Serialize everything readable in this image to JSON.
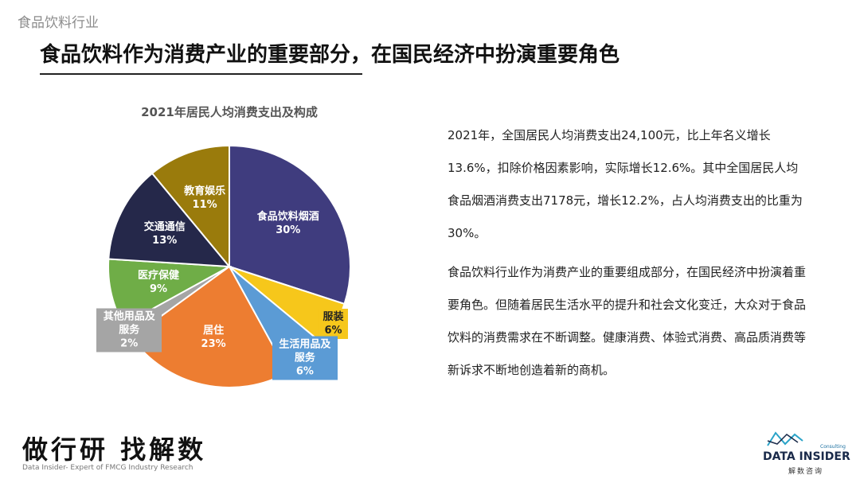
{
  "section": "食品饮料行业",
  "title": "食品饮料作为消费产业的重要部分，在国民经济中扮演重要角色",
  "chart_data": {
    "type": "pie",
    "title": "2021年居民人均消费支出及构成",
    "categories": [
      "食品饮料烟酒",
      "服装",
      "生活用品及服务",
      "居住",
      "其他用品及服务",
      "医疗保健",
      "交通通信",
      "教育娱乐"
    ],
    "values": [
      30,
      6,
      6,
      23,
      2,
      9,
      13,
      11
    ],
    "value_labels": [
      "30%",
      "6%",
      "6%",
      "23%",
      "2%",
      "9%",
      "13%",
      "11%"
    ],
    "colors": [
      "#3f3c7e",
      "#f6c71b",
      "#5b9bd5",
      "#ed7d31",
      "#a5a5a5",
      "#6fad47",
      "#25284a",
      "#9a7b0c"
    ]
  },
  "paragraphs": [
    "2021年，全国居民人均消费支出24,100元，比上年名义增长13.6%，扣除价格因素影响，实际增长12.6%。其中全国居民人均食品烟酒消费支出7178元，增长12.2%，占人均消费支出的比重为30%。",
    "食品饮料行业作为消费产业的重要组成部分，在国民经济中扮演着重要角色。但随着居民生活水平的提升和社会文化变迁，大众对于食品饮料的消费需求在不断调整。健康消费、体验式消费、高品质消费等新诉求不断地创造着新的商机。"
  ],
  "footer": {
    "brand": "做行研 找解数",
    "tagline": "Data Insider- Expert of FMCG Industry Research",
    "logo_tag": "Consulting",
    "logo_name": "DATA INSIDER",
    "logo_cn": "解数咨询"
  }
}
